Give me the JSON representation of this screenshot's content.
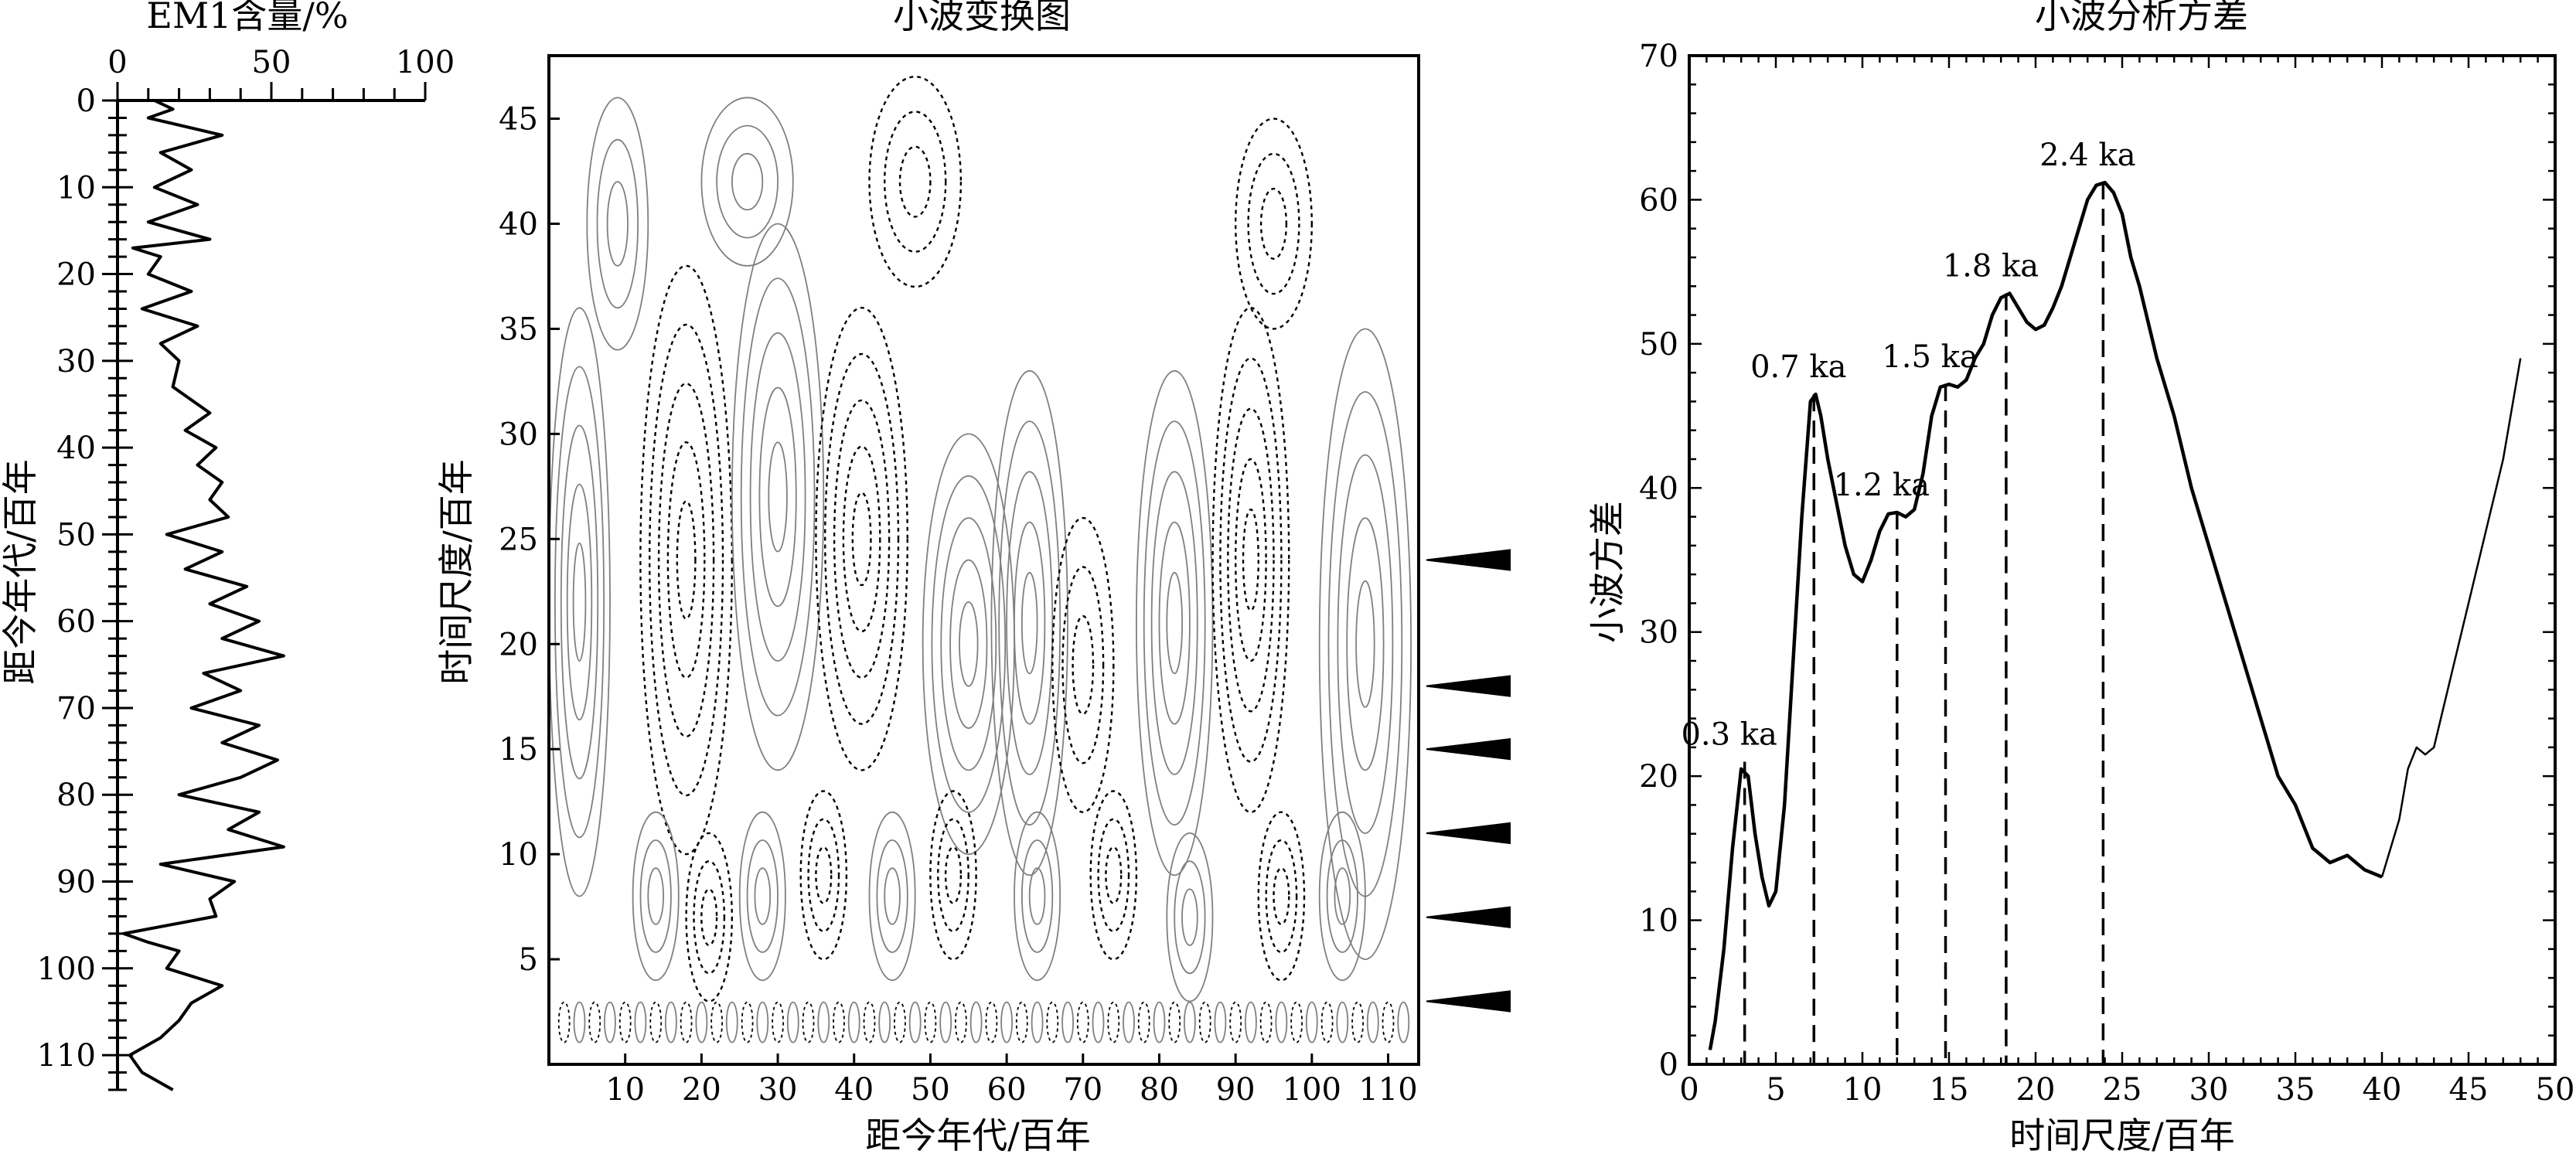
{
  "chart_data": [
    {
      "type": "line",
      "panel": "em1-content",
      "title": "EM1含量/%",
      "xlabel": "",
      "ylabel": "距今年代/百年",
      "xlim": [
        0,
        100
      ],
      "ylim": [
        0,
        114
      ],
      "y_inverted": true,
      "x_ticks": [
        "0",
        "50",
        "100"
      ],
      "y_ticks": [
        "0",
        "10",
        "20",
        "30",
        "40",
        "50",
        "60",
        "70",
        "80",
        "90",
        "100",
        "110"
      ],
      "series": [
        {
          "depth": [
            0,
            1,
            2,
            4,
            6,
            8,
            10,
            12,
            14,
            16,
            17,
            18,
            20,
            22,
            24,
            26,
            28,
            30,
            33,
            36,
            38,
            40,
            42,
            44,
            46,
            48,
            50,
            52,
            54,
            56,
            58,
            60,
            62,
            64,
            66,
            68,
            70,
            72,
            74,
            76,
            78,
            80,
            82,
            84,
            86,
            88,
            90,
            92,
            94,
            96,
            97,
            98,
            100,
            102,
            104,
            106,
            108,
            110,
            112,
            114
          ],
          "value": [
            12,
            18,
            10,
            34,
            14,
            24,
            12,
            26,
            10,
            30,
            5,
            14,
            10,
            24,
            8,
            26,
            14,
            20,
            18,
            30,
            22,
            32,
            26,
            34,
            30,
            36,
            16,
            34,
            22,
            42,
            30,
            46,
            34,
            54,
            28,
            40,
            24,
            46,
            34,
            52,
            40,
            20,
            46,
            36,
            54,
            14,
            38,
            30,
            32,
            2,
            10,
            20,
            16,
            34,
            24,
            20,
            14,
            4,
            8,
            18
          ]
        }
      ]
    },
    {
      "type": "heatmap",
      "panel": "wavelet-transform",
      "title": "小波变换图",
      "xlabel": "距今年代/百年",
      "ylabel": "时间尺度/百年",
      "xlim": [
        0,
        114
      ],
      "ylim": [
        0,
        48
      ],
      "x_ticks": [
        "10",
        "20",
        "30",
        "40",
        "50",
        "60",
        "70",
        "80",
        "90",
        "100",
        "110"
      ],
      "y_ticks": [
        "5",
        "10",
        "15",
        "20",
        "25",
        "30",
        "35",
        "40",
        "45"
      ],
      "marker_scales": [
        3,
        7,
        11,
        15,
        18,
        24
      ]
    },
    {
      "type": "line",
      "panel": "wavelet-variance",
      "title": "小波分析方差",
      "xlabel": "时间尺度/百年",
      "ylabel": "小波方差",
      "xlim": [
        0,
        50
      ],
      "ylim": [
        0,
        70
      ],
      "x_ticks": [
        "0",
        "5",
        "10",
        "15",
        "20",
        "25",
        "30",
        "35",
        "40",
        "45",
        "50"
      ],
      "y_ticks": [
        "0",
        "10",
        "20",
        "30",
        "40",
        "50",
        "60",
        "70"
      ],
      "series": [
        {
          "x": [
            1.2,
            1.5,
            2,
            2.5,
            3,
            3.4,
            3.8,
            4.2,
            4.6,
            5,
            5.5,
            6,
            6.5,
            7,
            7.3,
            7.6,
            8,
            8.5,
            9,
            9.5,
            10,
            10.5,
            11,
            11.5,
            12,
            12.5,
            13,
            13.5,
            14,
            14.5,
            15,
            15.5,
            16,
            16.5,
            17,
            17.5,
            18,
            18.5,
            19,
            19.5,
            20,
            20.5,
            21,
            21.5,
            22,
            22.5,
            23,
            23.5,
            24,
            24.5,
            25,
            25.5,
            26,
            27,
            28,
            29,
            30,
            31,
            32,
            33,
            34,
            35,
            36,
            37,
            38,
            39,
            40
          ],
          "y": [
            1,
            3,
            8,
            15,
            20.5,
            20,
            16,
            13,
            11,
            12,
            18,
            28,
            38,
            46,
            46.5,
            45,
            42,
            39,
            36,
            34,
            33.5,
            35,
            37,
            38.2,
            38.3,
            38,
            38.5,
            41,
            45,
            47,
            47.2,
            47,
            47.5,
            49,
            50,
            52,
            53.2,
            53.5,
            52.5,
            51.5,
            51,
            51.3,
            52.5,
            54,
            56,
            58,
            60,
            61,
            61.2,
            60.5,
            59,
            56,
            54,
            49,
            45,
            40,
            36,
            32,
            28,
            24,
            20,
            18,
            15,
            14,
            14.5,
            13.5,
            13
          ]
        },
        {
          "x": [
            40,
            41,
            41.5,
            42,
            42.5,
            43,
            44,
            45,
            46,
            47,
            48
          ],
          "y": [
            13,
            17,
            20.5,
            22,
            21.5,
            22,
            27,
            32,
            37,
            42,
            49
          ]
        }
      ],
      "annotations": [
        {
          "label": "0.3 ka",
          "x": 3.2,
          "y": 21
        },
        {
          "label": "0.7 ka",
          "x": 7.2,
          "y": 46.5
        },
        {
          "label": "1.2 ka",
          "x": 12,
          "y": 38.3
        },
        {
          "label": "1.5 ka",
          "x": 14.8,
          "y": 47.2
        },
        {
          "label": "1.8 ka",
          "x": 18.3,
          "y": 53.5
        },
        {
          "label": "2.4 ka",
          "x": 23.9,
          "y": 61.2
        }
      ]
    }
  ]
}
